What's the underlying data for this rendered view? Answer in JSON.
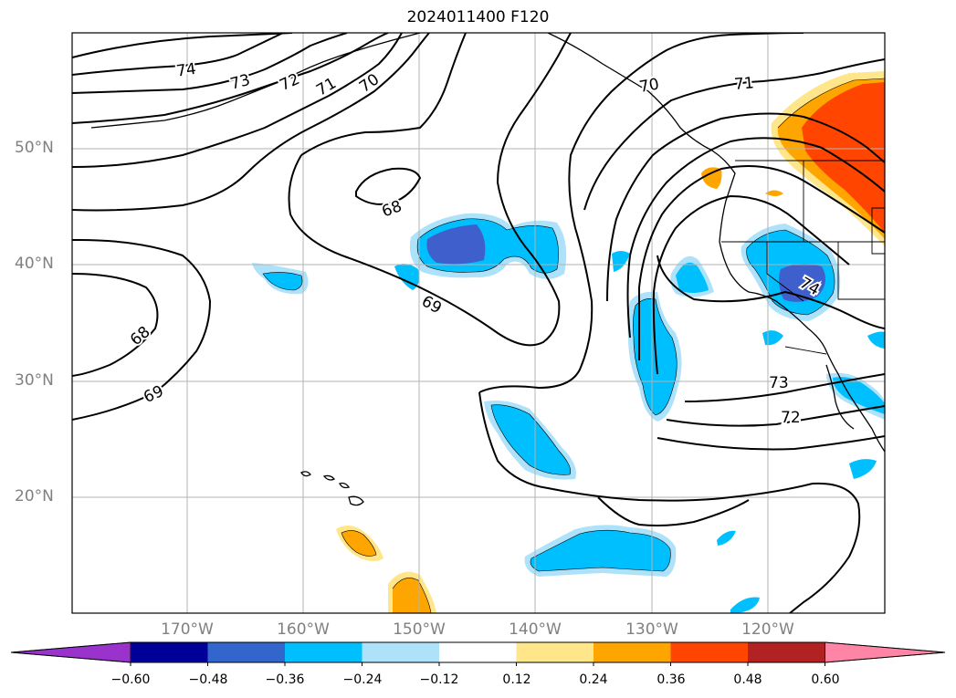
{
  "title": "2024011400 F120",
  "lat_labels": [
    "50°N",
    "40°N",
    "30°N",
    "20°N"
  ],
  "lon_labels": [
    "170°W",
    "160°W",
    "150°W",
    "140°W",
    "130°W",
    "120°W"
  ],
  "contour_labels": [
    "74",
    "73",
    "72",
    "71",
    "70",
    "70",
    "71",
    "68",
    "69",
    "68",
    "69",
    "73",
    "72",
    "74"
  ],
  "colorbar": {
    "ticks": [
      "−0.60",
      "−0.48",
      "−0.36",
      "−0.24",
      "−0.12",
      "0.12",
      "0.24",
      "0.36",
      "0.48",
      "0.60"
    ],
    "colors": [
      "#9933cc",
      "#000099",
      "#3366cc",
      "#00bfff",
      "#aee2fa",
      "#ffffff",
      "#ffe68a",
      "#ffa500",
      "#ff4500",
      "#b22222",
      "#ff85a6"
    ]
  },
  "shading_colors": {
    "light_blue": "#aee2fa",
    "blue": "#00bfff",
    "dark_blue": "#3f5fcc",
    "yellow": "#ffe68a",
    "orange": "#ffa500",
    "red": "#ff4500"
  }
}
